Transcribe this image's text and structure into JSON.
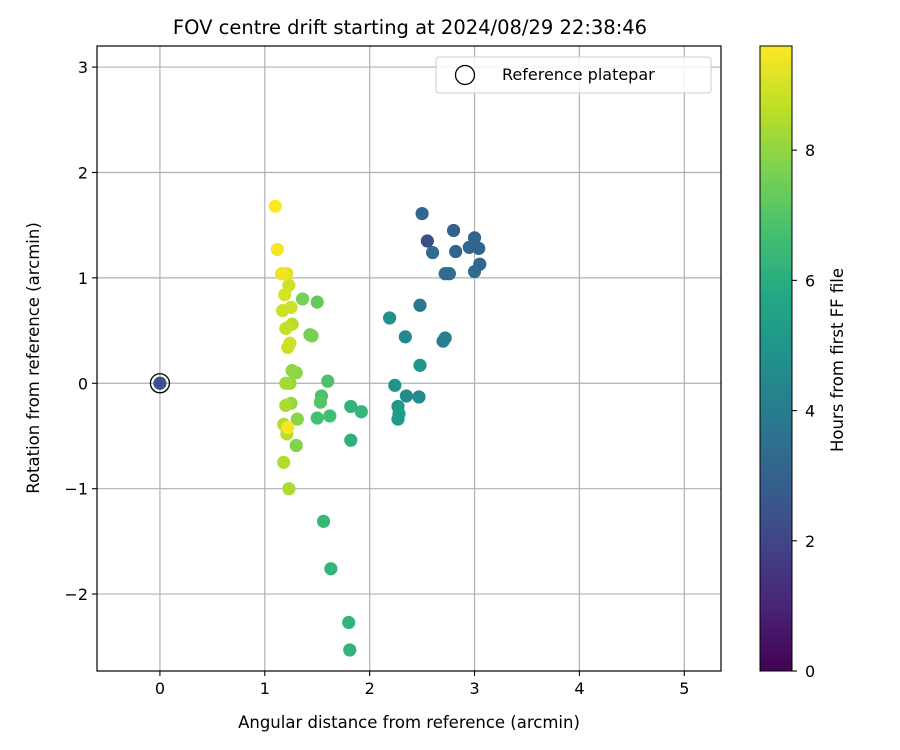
{
  "chart_data": {
    "type": "scatter",
    "title": "FOV centre drift starting at 2024/08/29 22:38:46",
    "xlabel": "Angular distance from reference (arcmin)",
    "ylabel": "Rotation from reference (arcmin)",
    "xlim": [
      -0.6,
      5.35
    ],
    "ylim": [
      -2.73,
      3.2
    ],
    "xticks": [
      0,
      1,
      2,
      3,
      4,
      5
    ],
    "yticks": [
      -2,
      -1,
      0,
      1,
      2,
      3
    ],
    "xtick_labels": [
      "0",
      "1",
      "2",
      "3",
      "4",
      "5"
    ],
    "ytick_labels": [
      "−2",
      "−1",
      "0",
      "1",
      "2",
      "3"
    ],
    "grid": true,
    "legend": {
      "position": "top-right",
      "entries": [
        "Reference platepar"
      ]
    },
    "colorbar": {
      "label": "Hours from first FF file",
      "range": [
        0,
        9.6
      ],
      "ticks": [
        0,
        2,
        4,
        6,
        8
      ],
      "tick_labels": [
        "0",
        "2",
        "4",
        "6",
        "8"
      ],
      "colormap": "viridis"
    },
    "reference_point": {
      "x": 0,
      "y": 0
    },
    "points": [
      {
        "x": 0.0,
        "y": 0.0,
        "c": 2.4
      },
      {
        "x": 2.55,
        "y": 1.35,
        "c": 2.3
      },
      {
        "x": 2.5,
        "y": 1.61,
        "c": 3.2
      },
      {
        "x": 2.8,
        "y": 1.45,
        "c": 3.0
      },
      {
        "x": 3.0,
        "y": 1.38,
        "c": 3.2
      },
      {
        "x": 2.95,
        "y": 1.29,
        "c": 3.2
      },
      {
        "x": 3.04,
        "y": 1.28,
        "c": 3.1
      },
      {
        "x": 2.6,
        "y": 1.24,
        "c": 3.3
      },
      {
        "x": 2.82,
        "y": 1.25,
        "c": 3.1
      },
      {
        "x": 3.05,
        "y": 1.13,
        "c": 3.2
      },
      {
        "x": 3.0,
        "y": 1.06,
        "c": 3.3
      },
      {
        "x": 2.72,
        "y": 1.04,
        "c": 3.5
      },
      {
        "x": 2.76,
        "y": 1.04,
        "c": 3.4
      },
      {
        "x": 2.48,
        "y": 0.74,
        "c": 3.8
      },
      {
        "x": 2.7,
        "y": 0.4,
        "c": 4.0
      },
      {
        "x": 2.72,
        "y": 0.43,
        "c": 4.1
      },
      {
        "x": 2.34,
        "y": 0.44,
        "c": 4.5
      },
      {
        "x": 2.19,
        "y": 0.62,
        "c": 4.8
      },
      {
        "x": 2.48,
        "y": 0.17,
        "c": 5.0
      },
      {
        "x": 2.24,
        "y": -0.02,
        "c": 4.9
      },
      {
        "x": 2.35,
        "y": -0.12,
        "c": 4.7
      },
      {
        "x": 2.47,
        "y": -0.13,
        "c": 4.6
      },
      {
        "x": 2.27,
        "y": -0.22,
        "c": 5.1
      },
      {
        "x": 2.28,
        "y": -0.29,
        "c": 5.3
      },
      {
        "x": 2.27,
        "y": -0.34,
        "c": 5.2
      },
      {
        "x": 1.82,
        "y": -0.22,
        "c": 6.2
      },
      {
        "x": 1.92,
        "y": -0.27,
        "c": 6.3
      },
      {
        "x": 1.82,
        "y": -0.54,
        "c": 6.1
      },
      {
        "x": 1.6,
        "y": 0.02,
        "c": 6.9
      },
      {
        "x": 1.54,
        "y": -0.12,
        "c": 6.8
      },
      {
        "x": 1.53,
        "y": -0.18,
        "c": 7.0
      },
      {
        "x": 1.62,
        "y": -0.31,
        "c": 6.6
      },
      {
        "x": 1.5,
        "y": -0.33,
        "c": 6.7
      },
      {
        "x": 1.56,
        "y": -1.31,
        "c": 6.4
      },
      {
        "x": 1.63,
        "y": -1.76,
        "c": 6.3
      },
      {
        "x": 1.8,
        "y": -2.27,
        "c": 6.2
      },
      {
        "x": 1.81,
        "y": -2.53,
        "c": 6.2
      },
      {
        "x": 1.5,
        "y": 0.77,
        "c": 7.3
      },
      {
        "x": 1.36,
        "y": 0.8,
        "c": 7.6
      },
      {
        "x": 1.43,
        "y": 0.46,
        "c": 7.5
      },
      {
        "x": 1.45,
        "y": 0.45,
        "c": 7.6
      },
      {
        "x": 1.3,
        "y": 0.1,
        "c": 7.9
      },
      {
        "x": 1.26,
        "y": 0.12,
        "c": 8.0
      },
      {
        "x": 1.24,
        "y": 0.0,
        "c": 8.1
      },
      {
        "x": 1.2,
        "y": 0.0,
        "c": 8.3
      },
      {
        "x": 1.31,
        "y": -0.34,
        "c": 7.9
      },
      {
        "x": 1.3,
        "y": -0.59,
        "c": 7.8
      },
      {
        "x": 1.25,
        "y": -0.19,
        "c": 8.1
      },
      {
        "x": 1.2,
        "y": -0.21,
        "c": 8.4
      },
      {
        "x": 1.18,
        "y": -0.39,
        "c": 8.5
      },
      {
        "x": 1.21,
        "y": -0.48,
        "c": 8.6
      },
      {
        "x": 1.18,
        "y": -0.75,
        "c": 8.5
      },
      {
        "x": 1.23,
        "y": -1.0,
        "c": 8.4
      },
      {
        "x": 1.22,
        "y": -0.42,
        "c": 9.5
      },
      {
        "x": 1.26,
        "y": 0.56,
        "c": 8.6
      },
      {
        "x": 1.2,
        "y": 0.52,
        "c": 8.7
      },
      {
        "x": 1.17,
        "y": 0.69,
        "c": 8.8
      },
      {
        "x": 1.25,
        "y": 0.72,
        "c": 8.9
      },
      {
        "x": 1.22,
        "y": 0.34,
        "c": 8.8
      },
      {
        "x": 1.24,
        "y": 0.38,
        "c": 8.9
      },
      {
        "x": 1.23,
        "y": 0.93,
        "c": 8.9
      },
      {
        "x": 1.19,
        "y": 0.84,
        "c": 9.0
      },
      {
        "x": 1.21,
        "y": 1.04,
        "c": 9.2
      },
      {
        "x": 1.16,
        "y": 1.04,
        "c": 9.4
      },
      {
        "x": 1.12,
        "y": 1.27,
        "c": 9.5
      },
      {
        "x": 1.1,
        "y": 1.68,
        "c": 9.6
      }
    ]
  }
}
